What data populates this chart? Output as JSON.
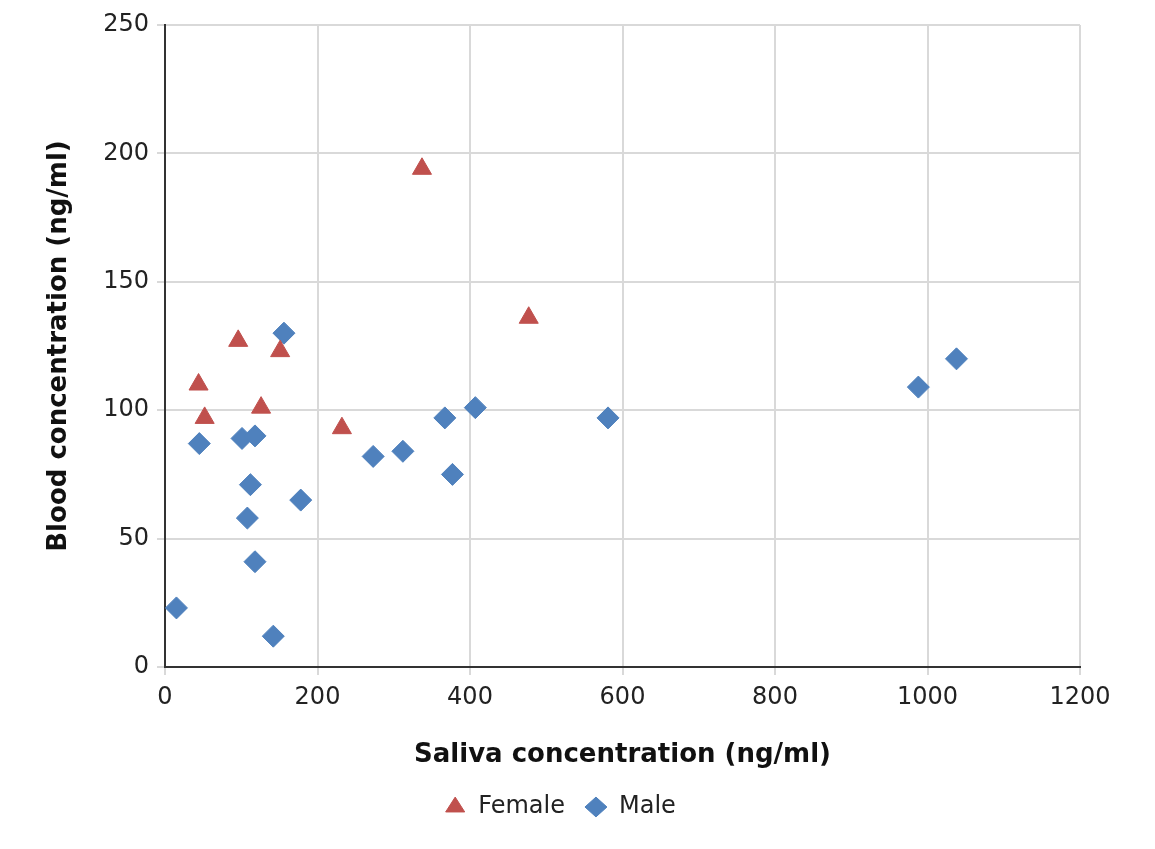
{
  "chart_data": {
    "type": "scatter",
    "xlabel": "Saliva concentration (ng/ml)",
    "ylabel": "Blood concentration (ng/ml)",
    "xlim": [
      0,
      1200
    ],
    "xticks": [
      0,
      200,
      400,
      600,
      800,
      1000,
      1200
    ],
    "ylim": [
      0,
      250
    ],
    "yticks": [
      0,
      50,
      100,
      150,
      200,
      250
    ],
    "grid": true,
    "legend": "bottom",
    "series": [
      {
        "name": "Female",
        "color": "#c0504d",
        "marker": "triangle",
        "x": [
          44,
          52,
          96,
          126,
          151,
          232,
          337,
          477
        ],
        "values": [
          110,
          97,
          127,
          101,
          123,
          93,
          194,
          136
        ]
      },
      {
        "name": "Male",
        "color": "#4f81bd",
        "marker": "diamond",
        "x": [
          15,
          45,
          101,
          118,
          112,
          108,
          118,
          142,
          156,
          178,
          273,
          312,
          367,
          377,
          407,
          581,
          988,
          1038
        ],
        "values": [
          23,
          87,
          89,
          90,
          71,
          58,
          41,
          12,
          130,
          65,
          82,
          84,
          97,
          75,
          101,
          97,
          109,
          120
        ]
      }
    ]
  }
}
